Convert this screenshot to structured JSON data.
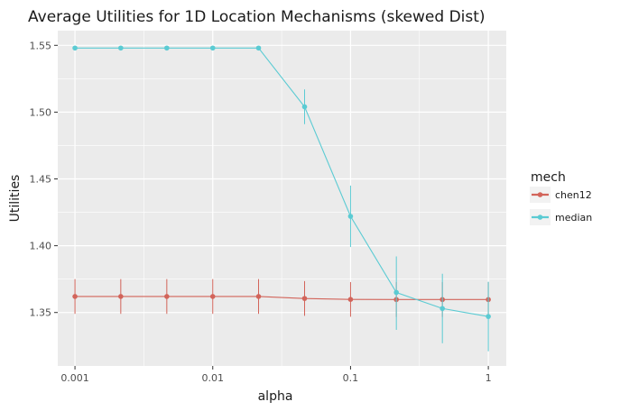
{
  "chart_data": {
    "type": "line",
    "title": "Average Utilities for 1D Location Mechanisms (skewed Dist)",
    "xlabel": "alpha",
    "ylabel": "Utilities",
    "x_scale": "log10",
    "xlim": [
      0.00075,
      1.35
    ],
    "ylim": [
      1.31,
      1.561
    ],
    "x_ticks": [
      {
        "value": 0.001,
        "label": "0.001"
      },
      {
        "value": 0.01,
        "label": "0.01"
      },
      {
        "value": 0.1,
        "label": "0.1"
      },
      {
        "value": 1,
        "label": "1"
      }
    ],
    "y_ticks": [
      {
        "value": 1.35,
        "label": "1.35"
      },
      {
        "value": 1.4,
        "label": "1.40"
      },
      {
        "value": 1.45,
        "label": "1.45"
      },
      {
        "value": 1.5,
        "label": "1.50"
      },
      {
        "value": 1.55,
        "label": "1.55"
      }
    ],
    "grid": true,
    "legend": {
      "title": "mech",
      "position": "right"
    },
    "x": [
      0.001,
      0.00215,
      0.00464,
      0.01,
      0.0215,
      0.0464,
      0.1,
      0.215,
      0.464,
      1
    ],
    "series": [
      {
        "name": "chen12",
        "color": "#D2645A",
        "values": [
          1.362,
          1.362,
          1.362,
          1.362,
          1.362,
          1.3605,
          1.3598,
          1.3597,
          1.3597,
          1.3597
        ],
        "err_low": [
          1.349,
          1.349,
          1.349,
          1.349,
          1.349,
          1.3475,
          1.3468,
          1.3467,
          1.3467,
          1.3467
        ],
        "err_high": [
          1.375,
          1.375,
          1.375,
          1.375,
          1.375,
          1.3735,
          1.3728,
          1.3727,
          1.3727,
          1.3727
        ]
      },
      {
        "name": "median",
        "color": "#5BCBD3",
        "values": [
          1.548,
          1.548,
          1.548,
          1.548,
          1.548,
          1.504,
          1.422,
          1.365,
          1.353,
          1.347
        ],
        "err_low": [
          1.548,
          1.548,
          1.548,
          1.548,
          1.548,
          1.491,
          1.399,
          1.337,
          1.327,
          1.321
        ],
        "err_high": [
          1.548,
          1.548,
          1.548,
          1.548,
          1.548,
          1.517,
          1.445,
          1.392,
          1.379,
          1.373
        ]
      }
    ]
  }
}
